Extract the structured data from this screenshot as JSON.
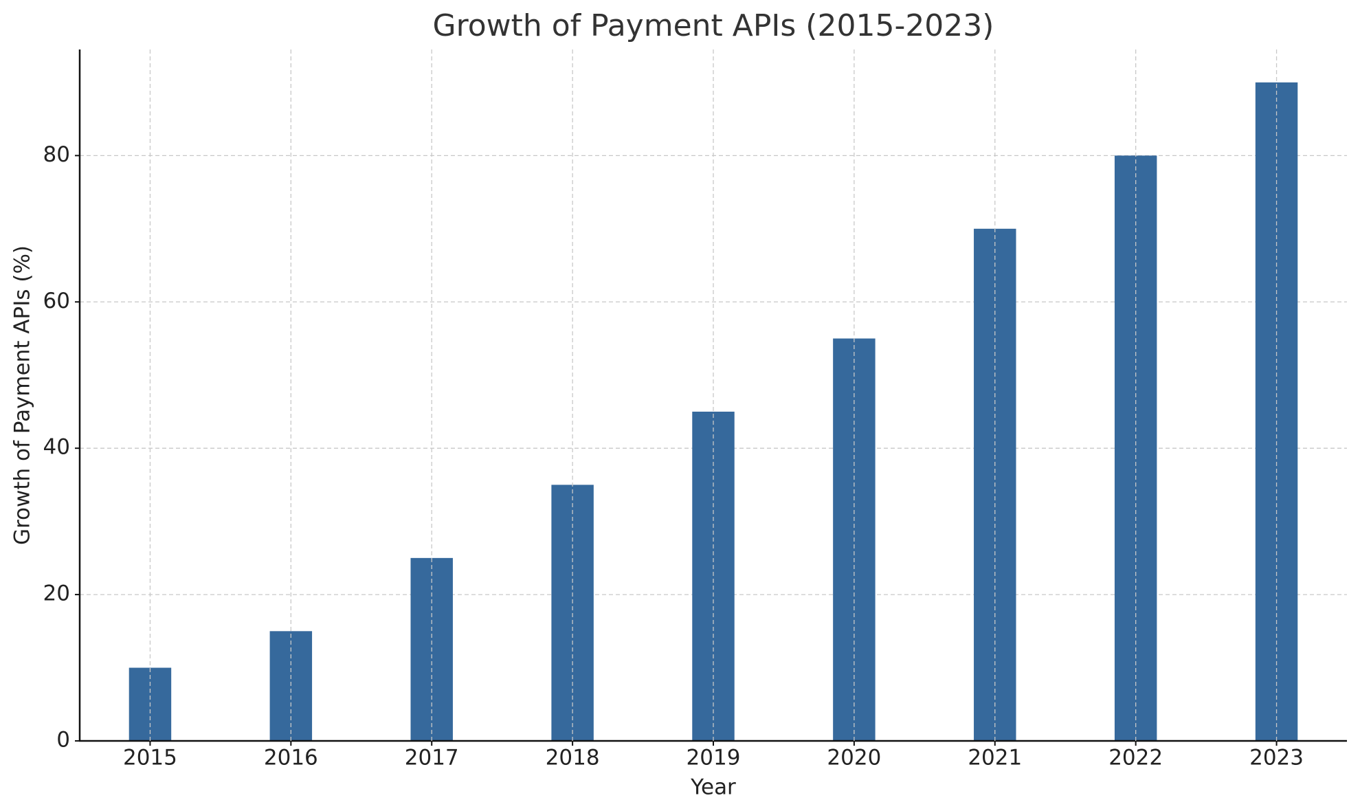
{
  "chart_data": {
    "type": "bar",
    "title": "Growth of Payment APIs (2015-2023)",
    "x_label": "Year",
    "y_label": "Growth of Payment APIs (%)",
    "categories": [
      "2015",
      "2016",
      "2017",
      "2018",
      "2019",
      "2020",
      "2021",
      "2022",
      "2023"
    ],
    "values": [
      10,
      15,
      25,
      35,
      45,
      55,
      70,
      80,
      90
    ],
    "color": "#36699c",
    "ylim": [
      0,
      94.5
    ],
    "yticks": [
      0,
      20,
      40,
      60,
      80
    ],
    "grid": true
  }
}
